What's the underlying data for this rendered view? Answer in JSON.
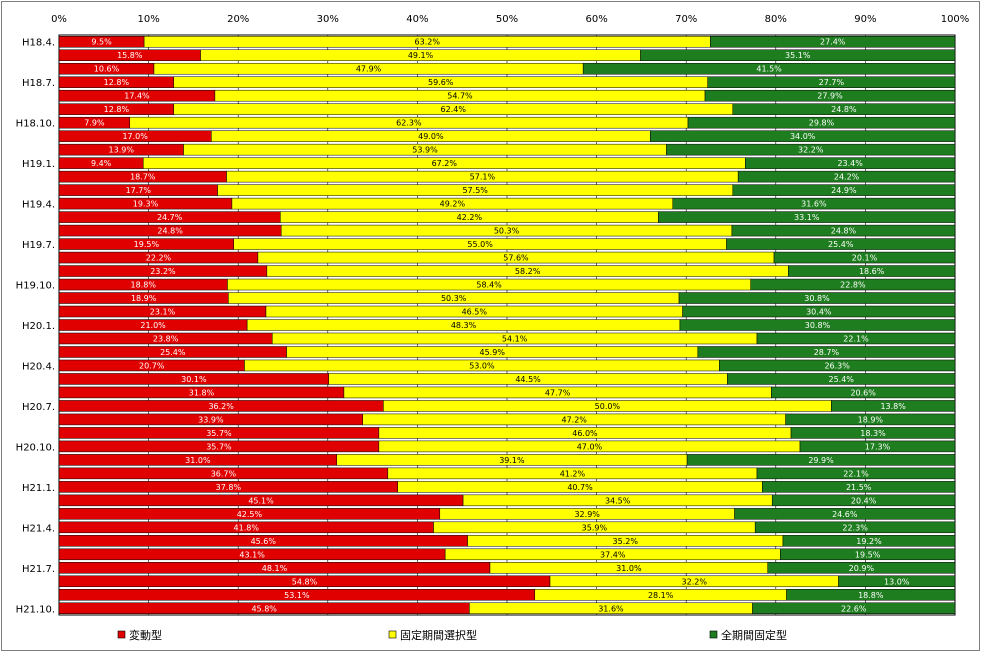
{
  "chart_data": {
    "type": "bar",
    "orientation": "horizontal",
    "stacked": "percent",
    "xlim": [
      0,
      100
    ],
    "x_ticks": [
      "0%",
      "10%",
      "20%",
      "30%",
      "40%",
      "50%",
      "60%",
      "70%",
      "80%",
      "90%",
      "100%"
    ],
    "grid": true,
    "legend_position": "bottom",
    "categories": [
      "H18.4.",
      "",
      "",
      "H18.7.",
      "",
      "",
      "H18.10.",
      "",
      "",
      "H19.1.",
      "",
      "",
      "H19.4.",
      "",
      "",
      "H19.7.",
      "",
      "",
      "H19.10.",
      "",
      "",
      "H20.1.",
      "",
      "",
      "H20.4.",
      "",
      "",
      "H20.7.",
      "",
      "",
      "H20.10.",
      "",
      "",
      "H21.1.",
      "",
      "",
      "H21.4.",
      "",
      "",
      "H21.7.",
      "",
      "",
      "H21.10."
    ],
    "series": [
      {
        "name": "変動型",
        "color": "#e00000",
        "label_color": "#ffffff",
        "values": [
          9.5,
          15.8,
          10.6,
          12.8,
          17.4,
          12.8,
          7.9,
          17.0,
          13.9,
          9.4,
          18.7,
          17.7,
          19.3,
          24.7,
          24.8,
          19.5,
          22.2,
          23.2,
          18.8,
          18.9,
          23.1,
          21.0,
          23.8,
          25.4,
          20.7,
          30.1,
          31.8,
          36.2,
          33.9,
          35.7,
          35.7,
          31.0,
          36.7,
          37.8,
          45.1,
          42.5,
          41.8,
          45.6,
          43.1,
          48.1,
          54.8,
          53.1,
          45.8
        ]
      },
      {
        "name": "固定期間選択型",
        "color": "#ffff00",
        "label_color": "#000000",
        "values": [
          63.2,
          49.1,
          47.9,
          59.6,
          54.7,
          62.4,
          62.3,
          49.0,
          53.9,
          67.2,
          57.1,
          57.5,
          49.2,
          42.2,
          50.3,
          55.0,
          57.6,
          58.2,
          58.4,
          50.3,
          46.5,
          48.3,
          54.1,
          45.9,
          53.0,
          44.5,
          47.7,
          50.0,
          47.2,
          46.0,
          47.0,
          39.1,
          41.2,
          40.7,
          34.5,
          32.9,
          35.9,
          35.2,
          37.4,
          31.0,
          32.2,
          28.1,
          31.6
        ]
      },
      {
        "name": "全期間固定型",
        "color": "#1e7d1e",
        "label_color": "#ffffff",
        "values": [
          27.4,
          35.1,
          41.5,
          27.7,
          27.9,
          24.8,
          29.8,
          34.0,
          32.2,
          23.4,
          24.2,
          24.9,
          31.6,
          33.1,
          24.8,
          25.4,
          20.1,
          18.6,
          22.8,
          30.8,
          30.4,
          30.8,
          22.1,
          28.7,
          26.3,
          25.4,
          20.6,
          13.8,
          18.9,
          18.3,
          17.3,
          29.9,
          22.1,
          21.5,
          20.4,
          24.6,
          22.3,
          19.2,
          19.5,
          20.9,
          13.0,
          18.8,
          22.6
        ]
      }
    ]
  }
}
